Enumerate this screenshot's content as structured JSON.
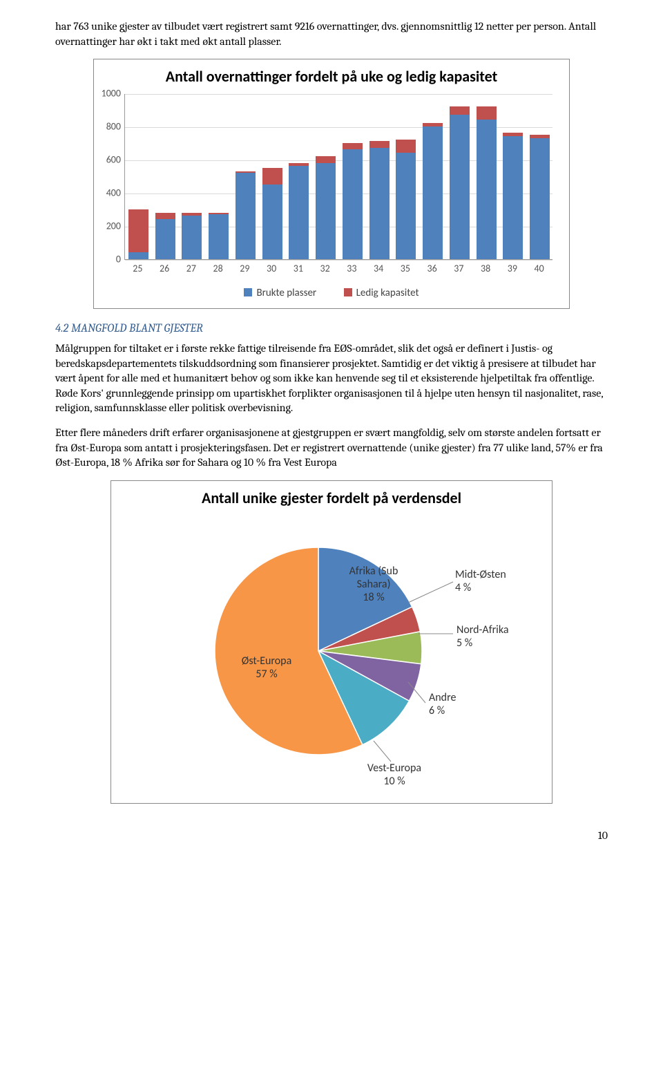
{
  "intro": {
    "p1": "har 763 unike gjester av tilbudet vært registrert samt 9216 overnattinger, dvs. gjennomsnittlig 12 netter per person. Antall overnattinger har økt i takt med økt antall plasser."
  },
  "bar_chart": {
    "title": "Antall overnattinger fordelt på uke og ledig kapasitet",
    "categories": [
      "25",
      "26",
      "27",
      "28",
      "29",
      "30",
      "31",
      "32",
      "33",
      "34",
      "35",
      "36",
      "37",
      "38",
      "39",
      "40"
    ],
    "brukte": [
      40,
      240,
      260,
      270,
      520,
      450,
      560,
      580,
      660,
      670,
      640,
      800,
      870,
      840,
      740,
      730
    ],
    "ledig": [
      260,
      40,
      20,
      10,
      10,
      100,
      20,
      40,
      40,
      40,
      80,
      20,
      50,
      80,
      20,
      20
    ],
    "ymax": 1000,
    "ytick": 200,
    "colors": {
      "brukte": "#4f81bd",
      "ledig": "#c0504d",
      "grid": "#d9d9d9",
      "border": "#888888"
    },
    "legend": {
      "a": "Brukte plasser",
      "b": "Ledig kapasitet"
    }
  },
  "section": {
    "heading_num": "4.2",
    "heading_rest": "Mangfold blant gjester",
    "p1": "Målgruppen for tiltaket er i første rekke fattige tilreisende fra EØS-området, slik det også er definert i Justis- og beredskapsdepartementets tilskuddsordning som finansierer prosjektet. Samtidig er det viktig å presisere at tilbudet har vært åpent for alle med et humanitært behov og som ikke kan henvende seg til et eksisterende hjelpetiltak fra offentlige. Røde Kors' grunnleggende prinsipp om upartiskhet forplikter organisasjonen til å hjelpe uten hensyn til nasjonalitet, rase, religion, samfunnsklasse eller politisk overbevisning.",
    "p2": "Etter flere måneders drift erfarer organisasjonene at gjestgruppen er svært mangfoldig, selv om største andelen fortsatt er fra Øst-Europa som antatt i prosjekteringsfasen. Det er registrert overnattende (unike gjester) fra 77 ulike land, 57% er fra Øst-Europa, 18 % Afrika sør for Sahara og 10 % fra Vest Europa"
  },
  "pie_chart": {
    "title": "Antall unike gjester fordelt på verdensdel",
    "slices": [
      {
        "label": "Afrika (Sub Sahara)",
        "pct": 18,
        "color": "#4f81bd"
      },
      {
        "label": "Midt-Østen",
        "pct": 4,
        "color": "#c0504d"
      },
      {
        "label": "Nord-Afrika",
        "pct": 5,
        "color": "#9bbb59"
      },
      {
        "label": "Andre",
        "pct": 6,
        "color": "#8064a2"
      },
      {
        "label": "Vest-Europa",
        "pct": 10,
        "color": "#4bacc6"
      },
      {
        "label": "Øst-Europa",
        "pct": 57,
        "color": "#f79646"
      }
    ],
    "labels": {
      "afrika1": "Afrika (Sub",
      "afrika2": "Sahara)",
      "afrika3": "18 %",
      "midt1": "Midt-Østen",
      "midt2": "4 %",
      "nord1": "Nord-Afrika",
      "nord2": "5 %",
      "andre1": "Andre",
      "andre2": "6 %",
      "vest1": "Vest-Europa",
      "vest2": "10 %",
      "ost1": "Øst-Europa",
      "ost2": "57 %"
    }
  },
  "page_number": "10"
}
